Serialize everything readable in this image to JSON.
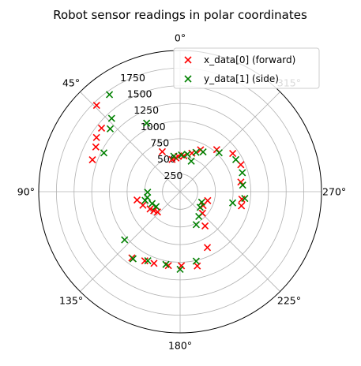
{
  "chart_data": {
    "type": "scatter",
    "projection": "polar",
    "title": "Robot sensor readings in polar coordinates",
    "theta_zero_location": "top",
    "theta_direction": "counterclockwise",
    "theta_tick_labels": [
      "0°",
      "45°",
      "90°",
      "135°",
      "180°",
      "225°",
      "270°",
      "315°"
    ],
    "r_tick_labels": [
      "250",
      "500",
      "750",
      "1000",
      "1250",
      "1500",
      "1750"
    ],
    "r_ticks": [
      250,
      500,
      750,
      1000,
      1250,
      1500,
      1750
    ],
    "rlim": [
      0,
      2000
    ],
    "grid": true,
    "legend_position": "top-right",
    "marker": "x",
    "series": [
      {
        "name": "x_data[0] (forward)",
        "color": "#ff0000",
        "points": [
          {
            "theta": 44,
            "r": 1700
          },
          {
            "theta": 57,
            "r": 1410
          },
          {
            "theta": 62,
            "r": 1350
          },
          {
            "theta": 70,
            "r": 1320
          },
          {
            "theta": 51,
            "r": 1430
          },
          {
            "theta": 24,
            "r": 620
          },
          {
            "theta": 14,
            "r": 470
          },
          {
            "theta": 7,
            "r": 480
          },
          {
            "theta": 3,
            "r": 500
          },
          {
            "theta": 354,
            "r": 510
          },
          {
            "theta": 343,
            "r": 570
          },
          {
            "theta": 334,
            "r": 660
          },
          {
            "theta": 319,
            "r": 790
          },
          {
            "theta": 306,
            "r": 920
          },
          {
            "theta": 294,
            "r": 940
          },
          {
            "theta": 279,
            "r": 870
          },
          {
            "theta": 263,
            "r": 880
          },
          {
            "theta": 257,
            "r": 890
          },
          {
            "theta": 101,
            "r": 620
          },
          {
            "theta": 110,
            "r": 560
          },
          {
            "theta": 120,
            "r": 490
          },
          {
            "theta": 126,
            "r": 460
          },
          {
            "theta": 132,
            "r": 430
          },
          {
            "theta": 144,
            "r": 1160
          },
          {
            "theta": 153,
            "r": 1100
          },
          {
            "theta": 160,
            "r": 1080
          },
          {
            "theta": 171,
            "r": 1060
          },
          {
            "theta": 181,
            "r": 1050
          },
          {
            "theta": 193,
            "r": 1080
          },
          {
            "theta": 206,
            "r": 880
          },
          {
            "theta": 216,
            "r": 600
          },
          {
            "theta": 226,
            "r": 440
          },
          {
            "theta": 239,
            "r": 380
          },
          {
            "theta": 252,
            "r": 410
          }
        ]
      },
      {
        "name": "y_data[1] (side)",
        "color": "#008000",
        "points": [
          {
            "theta": 36,
            "r": 1700
          },
          {
            "theta": 43,
            "r": 1420
          },
          {
            "theta": 48,
            "r": 1330
          },
          {
            "theta": 63,
            "r": 1210
          },
          {
            "theta": 26,
            "r": 1080
          },
          {
            "theta": 10,
            "r": 510
          },
          {
            "theta": 358,
            "r": 520
          },
          {
            "theta": 349,
            "r": 540
          },
          {
            "theta": 338,
            "r": 600
          },
          {
            "theta": 330,
            "r": 650
          },
          {
            "theta": 315,
            "r": 780
          },
          {
            "theta": 300,
            "r": 910
          },
          {
            "theta": 287,
            "r": 920
          },
          {
            "theta": 276,
            "r": 890
          },
          {
            "theta": 264,
            "r": 920
          },
          {
            "theta": 258,
            "r": 760
          },
          {
            "theta": 100,
            "r": 470
          },
          {
            "theta": 104,
            "r": 510
          },
          {
            "theta": 113,
            "r": 430
          },
          {
            "theta": 122,
            "r": 400
          },
          {
            "theta": 131,
            "r": 1040
          },
          {
            "theta": 145,
            "r": 1160
          },
          {
            "theta": 155,
            "r": 1080
          },
          {
            "theta": 169,
            "r": 1050
          },
          {
            "theta": 180,
            "r": 1100
          },
          {
            "theta": 193,
            "r": 1010
          },
          {
            "theta": 206,
            "r": 520
          },
          {
            "theta": 217,
            "r": 440
          },
          {
            "theta": 232,
            "r": 360
          },
          {
            "theta": 244,
            "r": 340
          },
          {
            "theta": 91,
            "r": 460
          },
          {
            "theta": 340,
            "r": 460
          }
        ]
      }
    ]
  }
}
